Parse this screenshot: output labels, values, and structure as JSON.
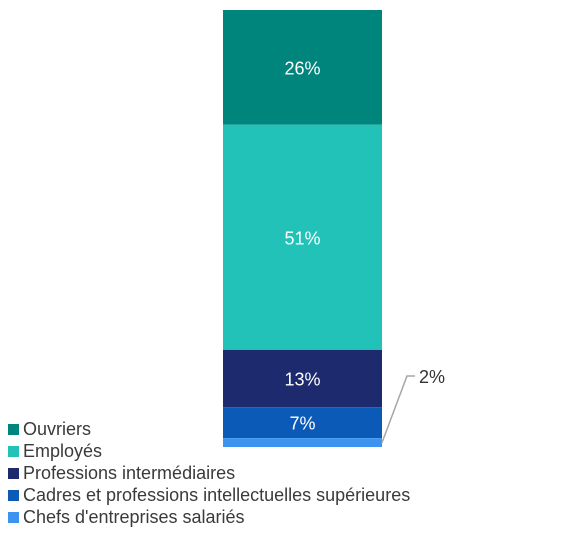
{
  "chart_data": {
    "type": "bar",
    "stacked": true,
    "categories": [
      ""
    ],
    "series": [
      {
        "name": "Ouvriers",
        "values": [
          26
        ],
        "label": "26%",
        "color": "#00857c"
      },
      {
        "name": "Employés",
        "values": [
          51
        ],
        "label": "51%",
        "color": "#22c2b8"
      },
      {
        "name": "Professions intermédiaires",
        "values": [
          13
        ],
        "label": "13%",
        "color": "#1e2a6e"
      },
      {
        "name": "Cadres et professions intellectuelles supérieures",
        "values": [
          7
        ],
        "label": "7%",
        "color": "#0b5ab8"
      },
      {
        "name": "Chefs d'entreprises salariés",
        "values": [
          2
        ],
        "label": "2%",
        "color": "#3d94f0"
      }
    ],
    "title": "",
    "xlabel": "",
    "ylabel": "",
    "unit": "%",
    "grid": false,
    "axes_visible": false,
    "legend_position": "bottom-left",
    "legend": [
      {
        "label": "Ouvriers",
        "color": "#00857c"
      },
      {
        "label": "Employés",
        "color": "#22c2b8"
      },
      {
        "label": "Professions intermédiaires",
        "color": "#1e2a6e"
      },
      {
        "label": "Cadres et professions intellectuelles supérieures",
        "color": "#0b5ab8"
      },
      {
        "label": "Chefs d'entreprises salariés",
        "color": "#3d94f0"
      }
    ]
  }
}
